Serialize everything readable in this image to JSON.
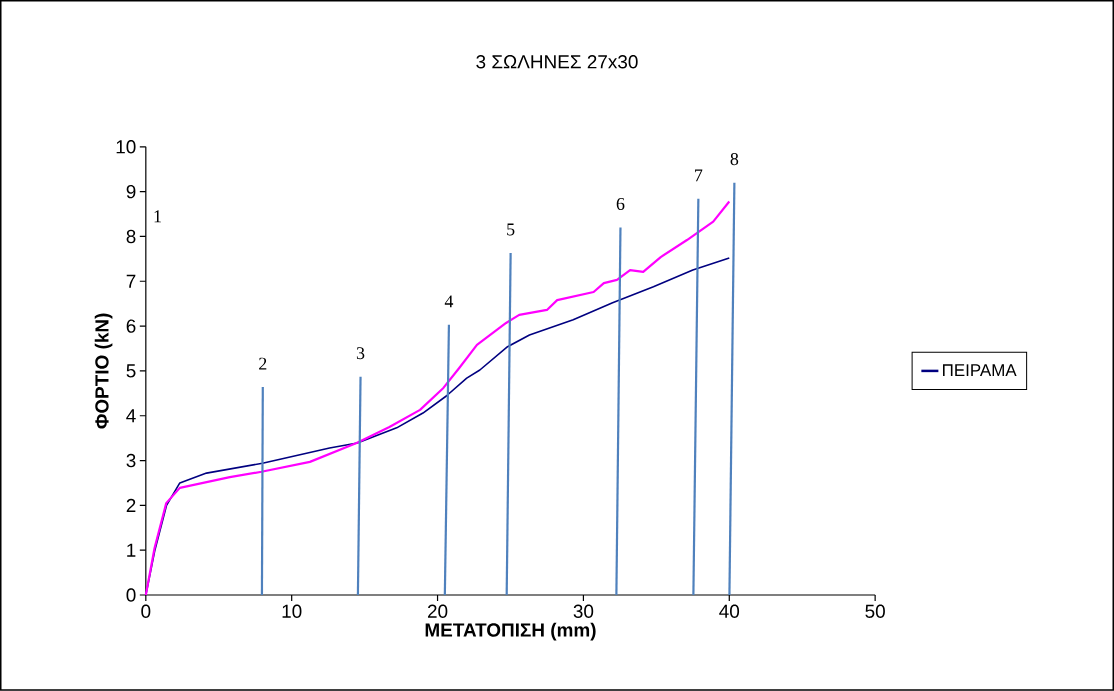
{
  "chart_data": {
    "type": "line",
    "title": "3 ΣΩΛΗΝΕΣ 27x30",
    "xlabel": "ΜΕΤΑΤΟΠΙΣΗ (mm)",
    "ylabel": "ΦΟΡΤΙΟ (kN)",
    "xlim": [
      0,
      50
    ],
    "xticks": [
      0,
      10,
      20,
      30,
      40,
      50
    ],
    "ylim": [
      0,
      10
    ],
    "yticks": [
      0,
      1,
      2,
      3,
      4,
      5,
      6,
      7,
      8,
      9,
      10
    ],
    "grid": false,
    "legend": "right",
    "marker": "none",
    "line_style": "solid",
    "series": [
      {
        "name": "ΠΕΙΡΑΜΑ",
        "color": "#000080",
        "x": [
          0,
          0.62,
          1.42,
          2.33,
          4.16,
          8.0,
          12.6,
          14.5,
          17.2,
          19.0,
          20.6,
          22.0,
          22.9,
          24.8,
          26.3,
          29.3,
          32.0,
          34.8,
          37.5,
          40.0
        ],
        "values": [
          0,
          1.0,
          2.0,
          2.5,
          2.72,
          2.94,
          3.28,
          3.39,
          3.73,
          4.06,
          4.44,
          4.84,
          5.02,
          5.54,
          5.8,
          6.14,
          6.52,
          6.88,
          7.25,
          7.52
        ]
      },
      {
        "color": "#ff00ff",
        "x": [
          0,
          0.6,
          1.4,
          2.33,
          5.76,
          7.93,
          11.25,
          14.45,
          16.7,
          18.8,
          20.4,
          21.5,
          22.7,
          24.7,
          25.6,
          27.5,
          28.2,
          30.7,
          31.4,
          32.3,
          33.2,
          34.1,
          35.3,
          37.1,
          38.9,
          40.0
        ],
        "values": [
          0,
          1.05,
          2.05,
          2.39,
          2.63,
          2.75,
          2.97,
          3.39,
          3.75,
          4.13,
          4.62,
          5.07,
          5.58,
          6.07,
          6.25,
          6.36,
          6.58,
          6.76,
          6.96,
          7.03,
          7.25,
          7.21,
          7.54,
          7.92,
          8.33,
          8.78
        ]
      },
      {
        "name": "2",
        "color": "#4f81bd",
        "x": [
          7.96,
          8.02
        ],
        "values": [
          0,
          4.64
        ]
      },
      {
        "name": "3",
        "color": "#4f81bd",
        "x": [
          14.54,
          14.72
        ],
        "values": [
          0,
          4.87
        ]
      },
      {
        "name": "4",
        "color": "#4f81bd",
        "x": [
          20.5,
          20.78
        ],
        "values": [
          0,
          6.03
        ]
      },
      {
        "name": "5",
        "color": "#4f81bd",
        "x": [
          24.74,
          25.01
        ],
        "values": [
          0,
          7.63
        ]
      },
      {
        "name": "6",
        "color": "#4f81bd",
        "x": [
          32.26,
          32.54
        ],
        "values": [
          0,
          8.2
        ]
      },
      {
        "name": "7",
        "color": "#4f81bd",
        "x": [
          37.54,
          37.88
        ],
        "values": [
          0,
          8.84
        ]
      },
      {
        "name": "8",
        "color": "#4f81bd",
        "x": [
          40.01,
          40.35
        ],
        "values": [
          0,
          9.2
        ]
      }
    ],
    "annotations": [
      "1"
    ]
  }
}
